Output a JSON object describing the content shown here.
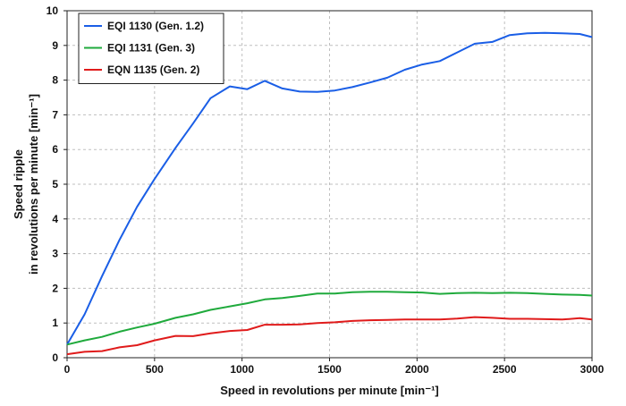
{
  "chart_data": {
    "type": "line",
    "title": "",
    "xlabel": "Speed in revolutions per minute [min⁻¹]",
    "ylabel_lines": [
      "Speed ripple",
      "in revolutions per minute [min⁻¹]"
    ],
    "xlim": [
      0,
      3000
    ],
    "ylim": [
      0,
      10
    ],
    "xticks": [
      0,
      500,
      1000,
      1500,
      2000,
      2500,
      3000
    ],
    "yticks": [
      0,
      1,
      2,
      3,
      4,
      5,
      6,
      7,
      8,
      9,
      10
    ],
    "grid": true,
    "legend_position": "top-left",
    "series": [
      {
        "name": "EQI 1130 (Gen. 1.2)",
        "color": "#1a5ee6",
        "points": [
          [
            0,
            0.38
          ],
          [
            100,
            1.25
          ],
          [
            200,
            2.35
          ],
          [
            300,
            3.4
          ],
          [
            400,
            4.35
          ],
          [
            500,
            5.15
          ],
          [
            620,
            6.05
          ],
          [
            720,
            6.75
          ],
          [
            820,
            7.48
          ],
          [
            930,
            7.82
          ],
          [
            1030,
            7.74
          ],
          [
            1130,
            7.98
          ],
          [
            1230,
            7.76
          ],
          [
            1330,
            7.67
          ],
          [
            1430,
            7.66
          ],
          [
            1530,
            7.7
          ],
          [
            1630,
            7.8
          ],
          [
            1730,
            7.93
          ],
          [
            1830,
            8.07
          ],
          [
            1930,
            8.3
          ],
          [
            2030,
            8.45
          ],
          [
            2130,
            8.55
          ],
          [
            2230,
            8.8
          ],
          [
            2330,
            9.05
          ],
          [
            2430,
            9.1
          ],
          [
            2530,
            9.3
          ],
          [
            2630,
            9.35
          ],
          [
            2730,
            9.36
          ],
          [
            2830,
            9.35
          ],
          [
            2930,
            9.33
          ],
          [
            3000,
            9.24
          ]
        ]
      },
      {
        "name": "EQI 1131 (Gen. 3)",
        "color": "#1faa3c",
        "points": [
          [
            0,
            0.38
          ],
          [
            100,
            0.5
          ],
          [
            200,
            0.6
          ],
          [
            300,
            0.75
          ],
          [
            400,
            0.87
          ],
          [
            500,
            0.98
          ],
          [
            620,
            1.15
          ],
          [
            720,
            1.25
          ],
          [
            820,
            1.38
          ],
          [
            930,
            1.48
          ],
          [
            1030,
            1.57
          ],
          [
            1130,
            1.68
          ],
          [
            1230,
            1.72
          ],
          [
            1330,
            1.78
          ],
          [
            1430,
            1.85
          ],
          [
            1530,
            1.85
          ],
          [
            1630,
            1.89
          ],
          [
            1730,
            1.9
          ],
          [
            1830,
            1.9
          ],
          [
            1930,
            1.89
          ],
          [
            2030,
            1.88
          ],
          [
            2130,
            1.84
          ],
          [
            2230,
            1.86
          ],
          [
            2330,
            1.87
          ],
          [
            2430,
            1.86
          ],
          [
            2530,
            1.87
          ],
          [
            2630,
            1.86
          ],
          [
            2730,
            1.84
          ],
          [
            2830,
            1.82
          ],
          [
            2930,
            1.81
          ],
          [
            3000,
            1.79
          ]
        ]
      },
      {
        "name": "EQN 1135 (Gen. 2)",
        "color": "#e01b1b",
        "points": [
          [
            0,
            0.1
          ],
          [
            100,
            0.17
          ],
          [
            200,
            0.19
          ],
          [
            300,
            0.3
          ],
          [
            400,
            0.36
          ],
          [
            500,
            0.5
          ],
          [
            620,
            0.63
          ],
          [
            720,
            0.62
          ],
          [
            820,
            0.7
          ],
          [
            930,
            0.77
          ],
          [
            1030,
            0.8
          ],
          [
            1130,
            0.95
          ],
          [
            1230,
            0.95
          ],
          [
            1330,
            0.96
          ],
          [
            1430,
            1.0
          ],
          [
            1530,
            1.02
          ],
          [
            1630,
            1.06
          ],
          [
            1730,
            1.08
          ],
          [
            1830,
            1.09
          ],
          [
            1930,
            1.1
          ],
          [
            2030,
            1.1
          ],
          [
            2130,
            1.1
          ],
          [
            2230,
            1.13
          ],
          [
            2330,
            1.17
          ],
          [
            2430,
            1.15
          ],
          [
            2530,
            1.12
          ],
          [
            2630,
            1.12
          ],
          [
            2730,
            1.11
          ],
          [
            2830,
            1.1
          ],
          [
            2930,
            1.14
          ],
          [
            3000,
            1.1
          ]
        ]
      }
    ]
  }
}
